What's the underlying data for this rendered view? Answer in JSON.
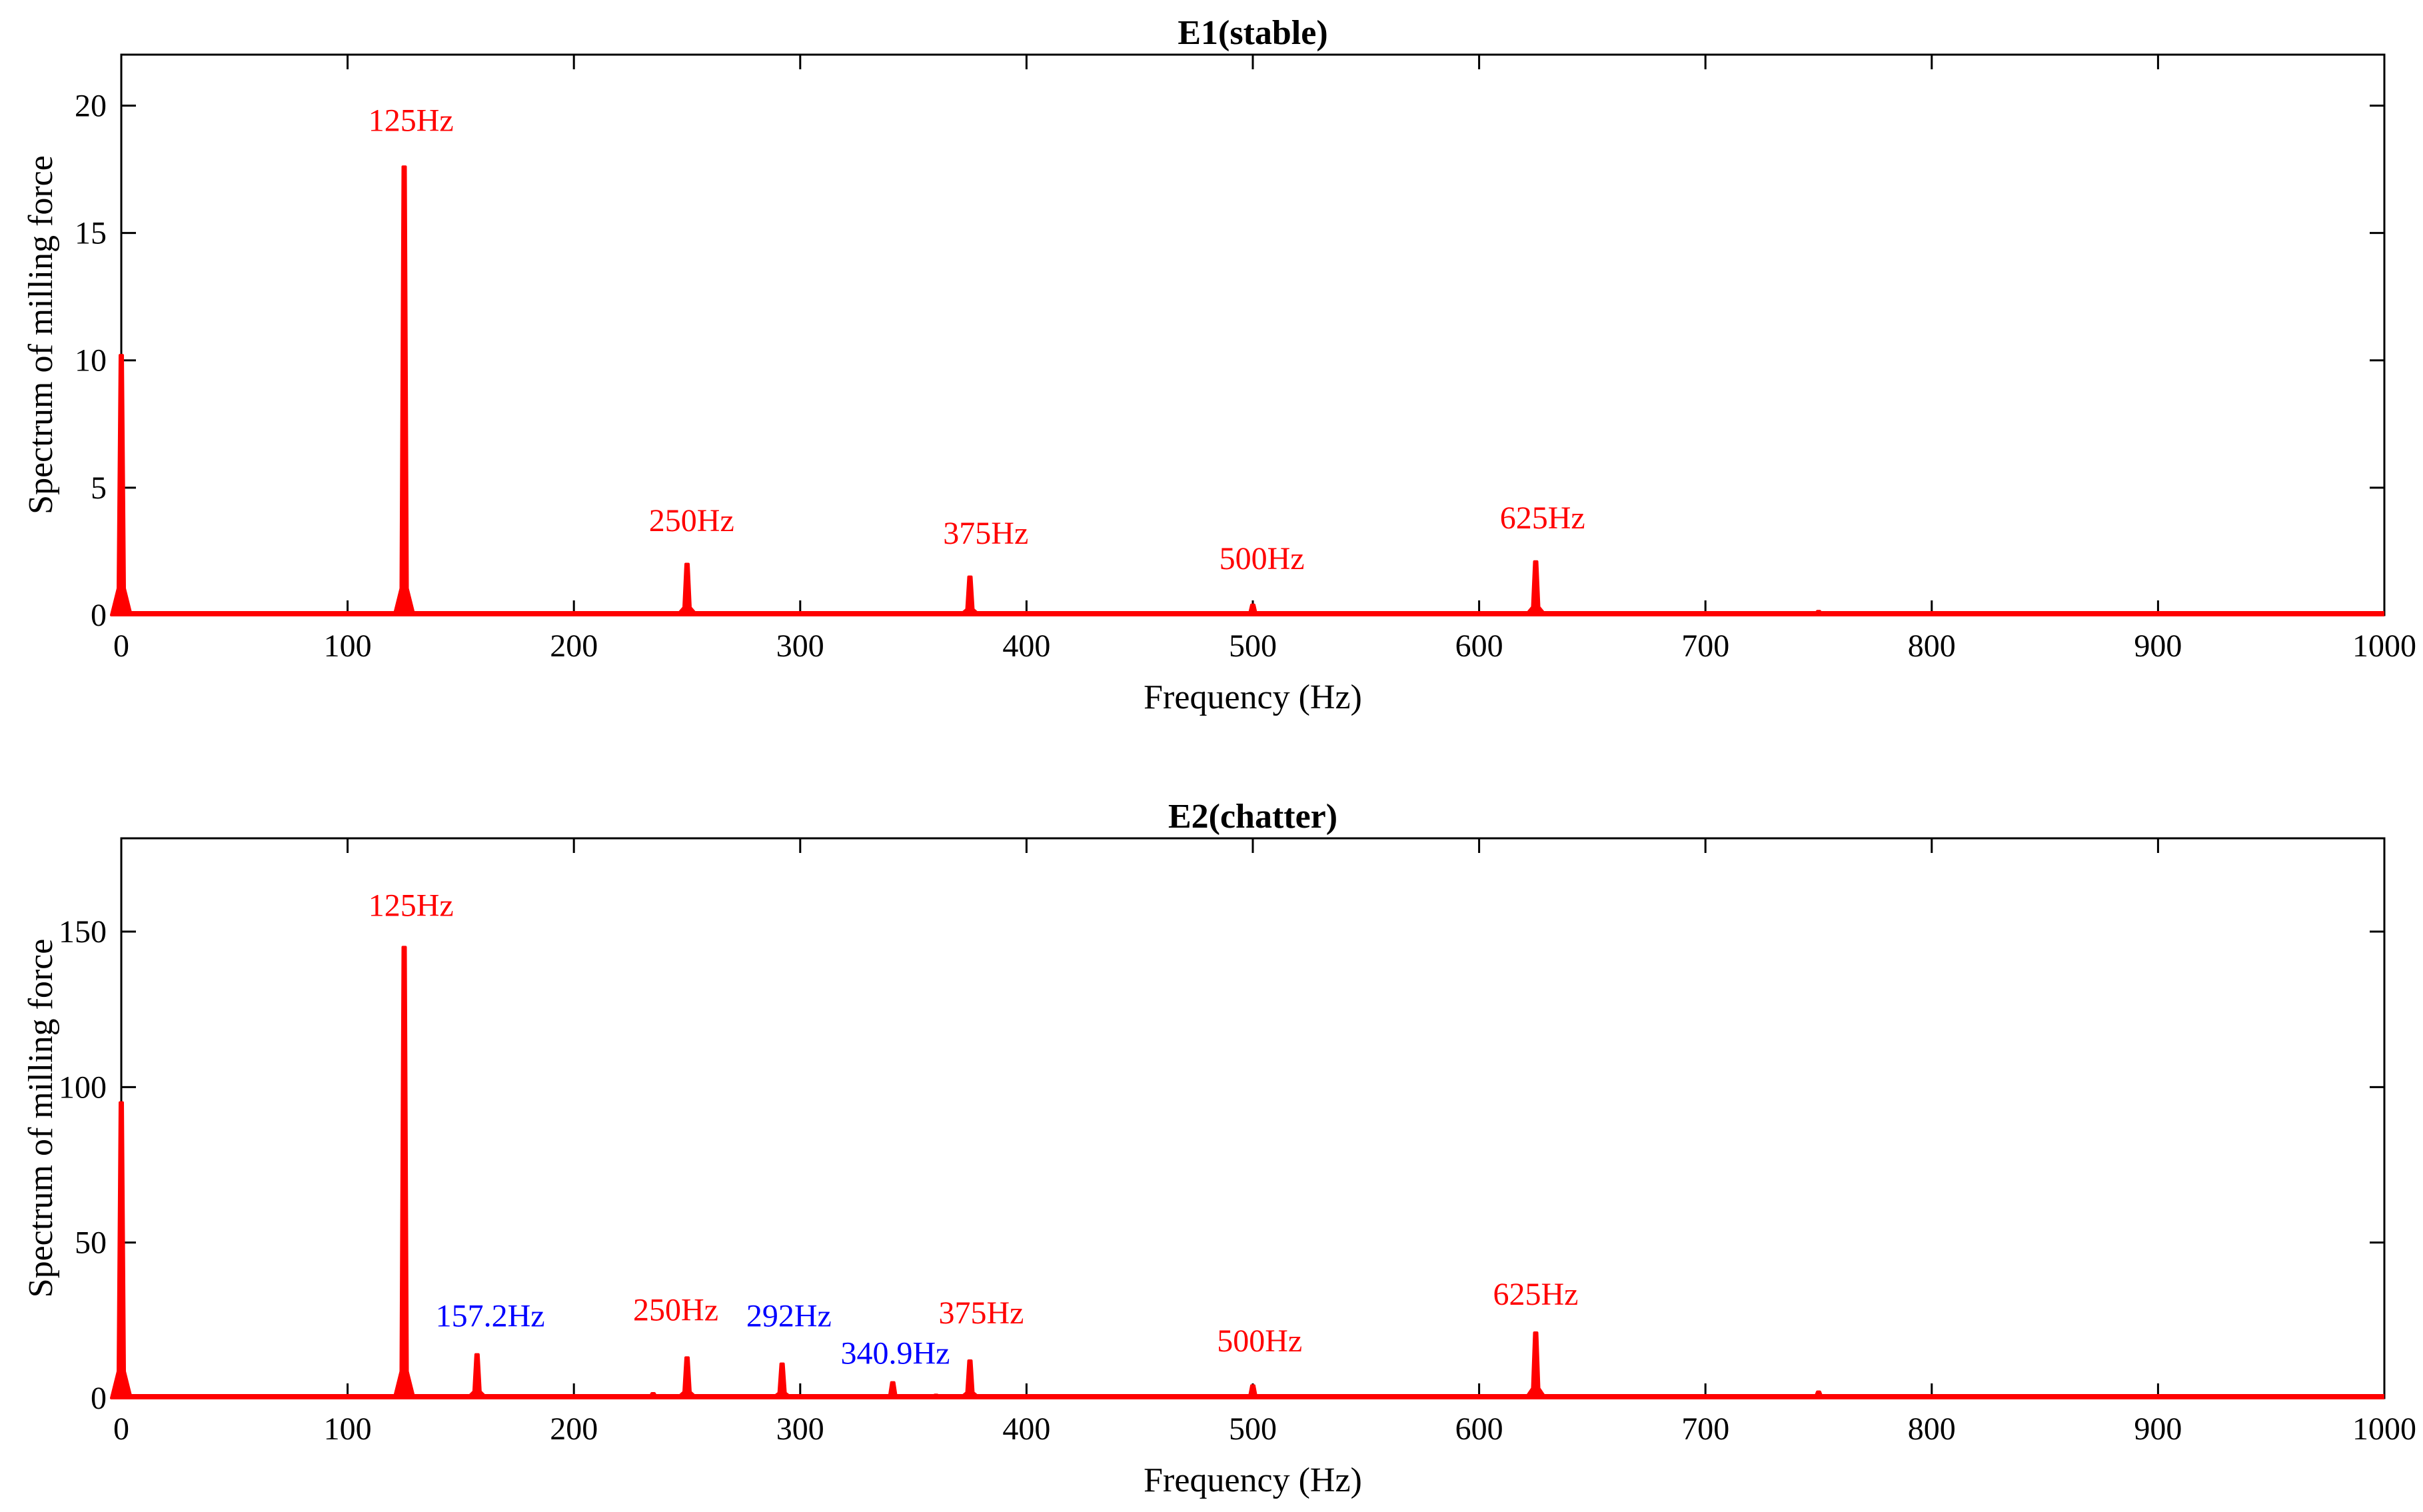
{
  "colors": {
    "spectrum": "#ff0000",
    "harmonic_label": "#ff0000",
    "chatter_label": "#0000ff",
    "axes": "#000000"
  },
  "chart_data": [
    {
      "type": "line",
      "title": "E1(stable)",
      "xlabel": "Frequency (Hz)",
      "ylabel": "Spectrum of milling force",
      "xlim": [
        0,
        1000
      ],
      "ylim": [
        0,
        22
      ],
      "xticks": [
        0,
        100,
        200,
        300,
        400,
        500,
        600,
        700,
        800,
        900,
        1000
      ],
      "yticks": [
        0,
        5,
        10,
        15,
        20
      ],
      "grid": false,
      "series": [
        {
          "name": "spectrum",
          "peaks": [
            {
              "x": 0,
              "y": 10.2
            },
            {
              "x": 125,
              "y": 17.6
            },
            {
              "x": 155,
              "y": 0.1
            },
            {
              "x": 160,
              "y": 0.1
            },
            {
              "x": 235,
              "y": 0.1
            },
            {
              "x": 250,
              "y": 2.0
            },
            {
              "x": 292,
              "y": 0.1
            },
            {
              "x": 340,
              "y": 0.1
            },
            {
              "x": 345,
              "y": 0.1
            },
            {
              "x": 360,
              "y": 0.1
            },
            {
              "x": 375,
              "y": 1.5
            },
            {
              "x": 500,
              "y": 0.4
            },
            {
              "x": 625,
              "y": 2.1
            },
            {
              "x": 750,
              "y": 0.15
            },
            {
              "x": 875,
              "y": 0.1
            }
          ]
        }
      ],
      "annotations": [
        {
          "text": "125Hz",
          "x": 128,
          "y": 19.0,
          "kind": "harmonic"
        },
        {
          "text": "250Hz",
          "x": 252,
          "y": 3.3,
          "kind": "harmonic"
        },
        {
          "text": "375Hz",
          "x": 382,
          "y": 2.8,
          "kind": "harmonic"
        },
        {
          "text": "500Hz",
          "x": 504,
          "y": 1.8,
          "kind": "harmonic"
        },
        {
          "text": "625Hz",
          "x": 628,
          "y": 3.4,
          "kind": "harmonic"
        }
      ]
    },
    {
      "type": "line",
      "title": "E2(chatter)",
      "xlabel": "Frequency (Hz)",
      "ylabel": "Spectrum of milling force",
      "xlim": [
        0,
        1000
      ],
      "ylim": [
        0,
        180
      ],
      "xticks": [
        0,
        100,
        200,
        300,
        400,
        500,
        600,
        700,
        800,
        900,
        1000
      ],
      "yticks": [
        0,
        50,
        100,
        150
      ],
      "grid": false,
      "series": [
        {
          "name": "spectrum",
          "peaks": [
            {
              "x": 0,
              "y": 95
            },
            {
              "x": 125,
              "y": 145
            },
            {
              "x": 157.2,
              "y": 14
            },
            {
              "x": 235,
              "y": 1.5
            },
            {
              "x": 250,
              "y": 13
            },
            {
              "x": 292,
              "y": 11
            },
            {
              "x": 340.9,
              "y": 5
            },
            {
              "x": 360,
              "y": 1
            },
            {
              "x": 375,
              "y": 12
            },
            {
              "x": 500,
              "y": 4
            },
            {
              "x": 625,
              "y": 21
            },
            {
              "x": 750,
              "y": 2
            }
          ]
        }
      ],
      "annotations": [
        {
          "text": "125Hz",
          "x": 128,
          "y": 155,
          "kind": "harmonic"
        },
        {
          "text": "157.2Hz",
          "x": 163,
          "y": 23,
          "kind": "chatter"
        },
        {
          "text": "250Hz",
          "x": 245,
          "y": 25,
          "kind": "harmonic"
        },
        {
          "text": "292Hz",
          "x": 295,
          "y": 23,
          "kind": "chatter"
        },
        {
          "text": "340.9Hz",
          "x": 342,
          "y": 11,
          "kind": "chatter"
        },
        {
          "text": "375Hz",
          "x": 380,
          "y": 24,
          "kind": "harmonic"
        },
        {
          "text": "500Hz",
          "x": 503,
          "y": 15,
          "kind": "harmonic"
        },
        {
          "text": "625Hz",
          "x": 625,
          "y": 30,
          "kind": "harmonic"
        }
      ]
    }
  ]
}
